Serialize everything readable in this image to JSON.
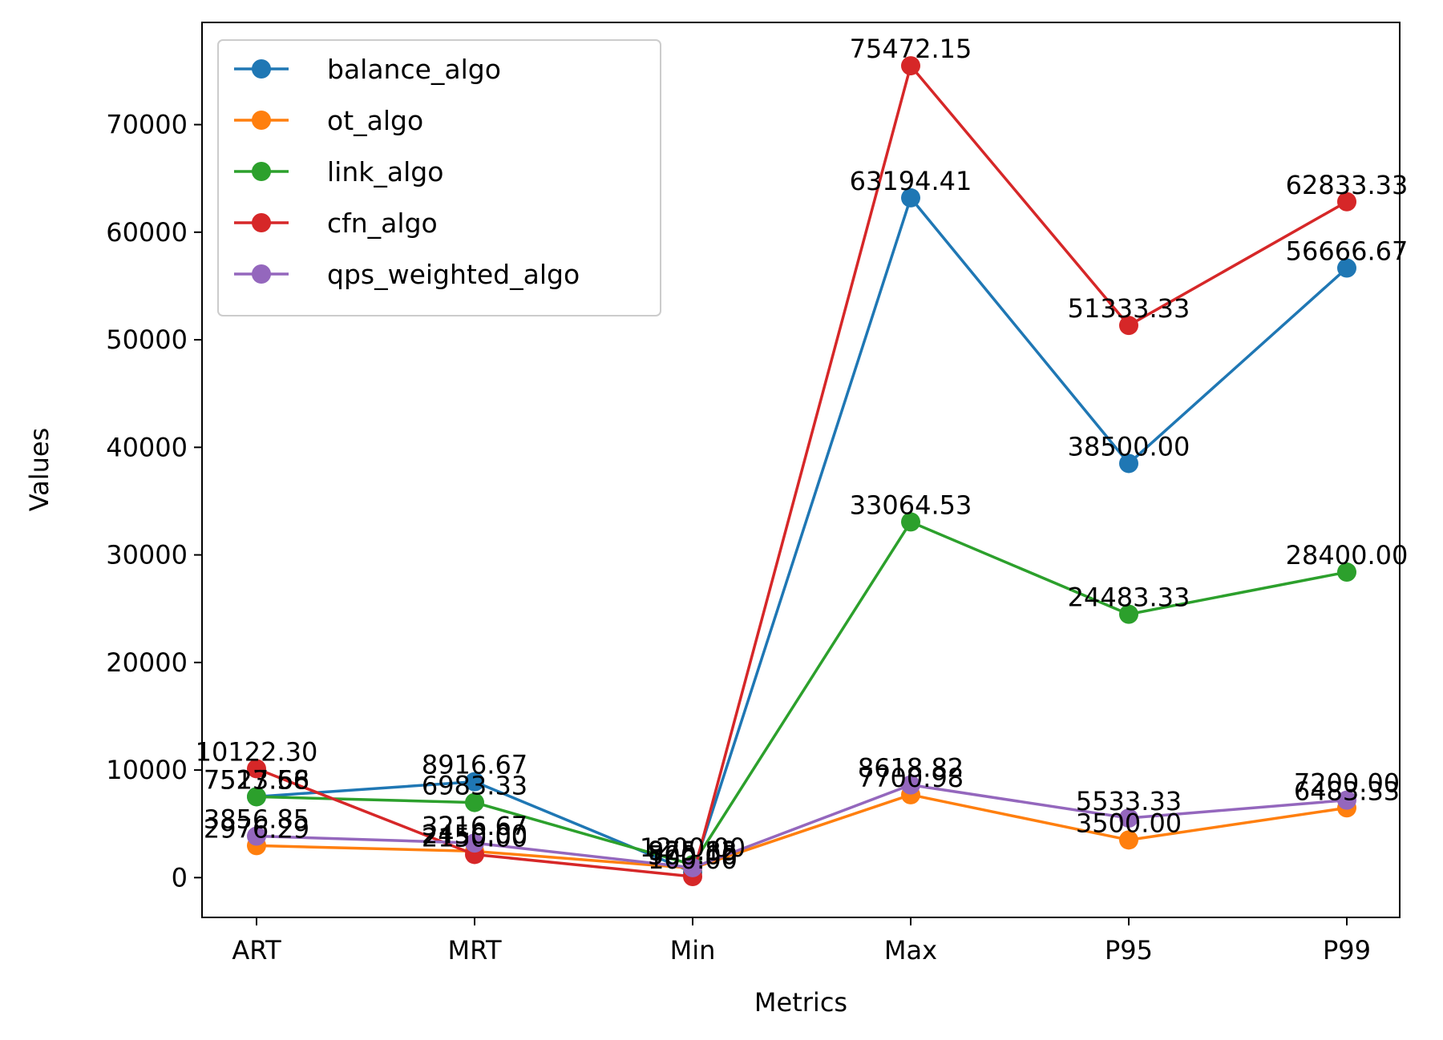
{
  "chart_data": {
    "type": "line",
    "title": "",
    "xlabel": "Metrics",
    "ylabel": "Values",
    "categories": [
      "ART",
      "MRT",
      "Min",
      "Max",
      "P95",
      "P99"
    ],
    "ylim": [
      -3700,
      79500
    ],
    "yticks": [
      0,
      10000,
      20000,
      30000,
      40000,
      50000,
      60000,
      70000
    ],
    "grid": false,
    "legend_position": "upper-left",
    "series": [
      {
        "name": "balance_algo",
        "color": "#1f77b4",
        "values": [
          7523.56,
          8916.67,
          500.0,
          63194.41,
          38500.0,
          56666.67
        ],
        "labels": [
          "7523.56",
          "8916.67",
          "500.00",
          "63194.41",
          "38500.00",
          "56666.67"
        ]
      },
      {
        "name": "ot_algo",
        "color": "#ff7f0e",
        "values": [
          2976.29,
          2450.0,
          875.85,
          7700.98,
          3500.0,
          6483.33
        ],
        "labels": [
          "2976.29",
          "2450.00",
          "875.85",
          "7700.98",
          "3500.00",
          "6483.33"
        ]
      },
      {
        "name": "link_algo",
        "color": "#2ca02c",
        "values": [
          7517.68,
          6983.33,
          1200.0,
          33064.53,
          24483.33,
          28400.0
        ],
        "labels": [
          "7517.68",
          "6983.33",
          "1200.00",
          "33064.53",
          "24483.33",
          "28400.00"
        ]
      },
      {
        "name": "cfn_algo",
        "color": "#d62728",
        "values": [
          10122.3,
          2150.0,
          100.0,
          75472.15,
          51333.33,
          62833.33
        ],
        "labels": [
          "10122.30",
          "2150.00",
          "100.00",
          "75472.15",
          "51333.33",
          "62833.33"
        ]
      },
      {
        "name": "qps_weighted_algo",
        "color": "#9467bd",
        "values": [
          3856.85,
          3216.67,
          925.12,
          8618.82,
          5533.33,
          7200.0
        ],
        "labels": [
          "3856.85",
          "3216.67",
          "925.12",
          "8618.82",
          "5533.33",
          "7200.00"
        ]
      }
    ]
  }
}
